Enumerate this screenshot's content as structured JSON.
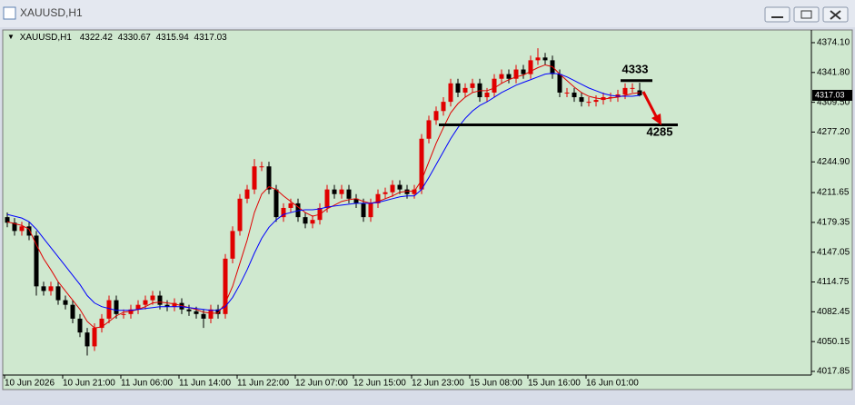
{
  "chart_data": {
    "type": "candlestick",
    "title": "XAUUSD,H1",
    "categories": [
      "10 Jun 2026",
      null,
      null,
      null,
      null,
      null,
      null,
      null,
      "10 Jun 21:00",
      null,
      null,
      null,
      null,
      null,
      null,
      null,
      "11 Jun 06:00",
      null,
      null,
      null,
      null,
      null,
      null,
      null,
      "11 Jun 14:00",
      null,
      null,
      null,
      null,
      null,
      null,
      null,
      "11 Jun 22:00",
      null,
      null,
      null,
      null,
      null,
      null,
      null,
      "12 Jun 07:00",
      null,
      null,
      null,
      null,
      null,
      null,
      null,
      "12 Jun 15:00",
      null,
      null,
      null,
      null,
      null,
      null,
      null,
      "12 Jun 23:00",
      null,
      null,
      null,
      null,
      null,
      null,
      null,
      "15 Jun 08:00",
      null,
      null,
      null,
      null,
      null,
      null,
      null,
      "15 Jun 16:00",
      null,
      null,
      null,
      null,
      null,
      null,
      null,
      "16 Jun 01:00",
      null,
      null,
      null,
      null,
      null,
      null,
      null
    ],
    "open": [
      4185,
      4179,
      4170,
      4175,
      4165,
      4110,
      4105,
      4110,
      4095,
      4090,
      4075,
      4060,
      4045,
      4065,
      4075,
      4095,
      4080,
      4080,
      4085,
      4090,
      4095,
      4100,
      4090,
      4088,
      4092,
      4085,
      4083,
      4080,
      4075,
      4085,
      4080,
      4140,
      4170,
      4205,
      4215,
      4240,
      4240,
      4215,
      4185,
      4195,
      4200,
      4185,
      4178,
      4182,
      4195,
      4215,
      4210,
      4215,
      4205,
      4200,
      4185,
      4200,
      4210,
      4212,
      4220,
      4215,
      4210,
      4215,
      4270,
      4290,
      4300,
      4310,
      4330,
      4320,
      4325,
      4330,
      4315,
      4320,
      4335,
      4340,
      4335,
      4345,
      4340,
      4355,
      4358,
      4355,
      4340,
      4320,
      4320,
      4315,
      4310,
      4310,
      4312,
      4315,
      4315,
      4318,
      4325,
      4322.42
    ],
    "high": [
      4190,
      4184,
      4180,
      4180,
      4170,
      4115,
      4115,
      4115,
      4100,
      4095,
      4080,
      4065,
      4070,
      4080,
      4100,
      4100,
      4085,
      4090,
      4095,
      4100,
      4105,
      4105,
      4095,
      4097,
      4097,
      4090,
      4088,
      4085,
      4090,
      4090,
      4145,
      4175,
      4210,
      4220,
      4248,
      4245,
      4245,
      4220,
      4200,
      4205,
      4205,
      4190,
      4187,
      4200,
      4220,
      4220,
      4220,
      4220,
      4210,
      4205,
      4205,
      4215,
      4217,
      4225,
      4225,
      4220,
      4220,
      4275,
      4295,
      4305,
      4315,
      4335,
      4335,
      4330,
      4335,
      4335,
      4325,
      4340,
      4345,
      4345,
      4350,
      4350,
      4360,
      4368,
      4363,
      4360,
      4345,
      4325,
      4325,
      4320,
      4315,
      4317,
      4320,
      4320,
      4323,
      4330,
      4330,
      4330.67
    ],
    "low": [
      4174,
      4165,
      4165,
      4160,
      4100,
      4100,
      4100,
      4090,
      4085,
      4070,
      4055,
      4035,
      4040,
      4060,
      4070,
      4075,
      4075,
      4075,
      4080,
      4085,
      4090,
      4085,
      4083,
      4083,
      4080,
      4078,
      4075,
      4065,
      4070,
      4075,
      4075,
      4135,
      4165,
      4200,
      4210,
      4235,
      4210,
      4180,
      4180,
      4190,
      4180,
      4173,
      4173,
      4177,
      4190,
      4205,
      4205,
      4200,
      4195,
      4180,
      4180,
      4195,
      4205,
      4207,
      4210,
      4205,
      4205,
      4210,
      4265,
      4285,
      4295,
      4305,
      4315,
      4315,
      4320,
      4310,
      4310,
      4315,
      4330,
      4330,
      4330,
      4335,
      4335,
      4350,
      4350,
      4335,
      4315,
      4315,
      4310,
      4305,
      4305,
      4305,
      4307,
      4310,
      4310,
      4313,
      4320,
      4315.94
    ],
    "close": [
      4179,
      4170,
      4175,
      4165,
      4110,
      4105,
      4110,
      4095,
      4090,
      4075,
      4060,
      4045,
      4065,
      4075,
      4095,
      4080,
      4080,
      4085,
      4090,
      4095,
      4100,
      4090,
      4088,
      4092,
      4085,
      4083,
      4080,
      4075,
      4085,
      4080,
      4140,
      4170,
      4205,
      4215,
      4240,
      4240,
      4215,
      4185,
      4195,
      4200,
      4185,
      4178,
      4182,
      4195,
      4215,
      4210,
      4215,
      4205,
      4200,
      4185,
      4200,
      4210,
      4212,
      4220,
      4215,
      4210,
      4215,
      4270,
      4290,
      4300,
      4310,
      4330,
      4320,
      4325,
      4330,
      4315,
      4320,
      4335,
      4340,
      4335,
      4345,
      4340,
      4355,
      4358,
      4355,
      4340,
      4320,
      4320,
      4315,
      4310,
      4310,
      4312,
      4315,
      4315,
      4318,
      4325,
      4325,
      4317.03
    ],
    "up_color": "#e00000",
    "down_color": "#000000",
    "lines": [
      {
        "color": "#e00000",
        "values": [
          4180,
          4178,
          4176,
          4172,
          4155,
          4140,
          4128,
          4115,
          4105,
          4095,
          4085,
          4072,
          4065,
          4066,
          4072,
          4078,
          4082,
          4083,
          4085,
          4088,
          4092,
          4093,
          4092,
          4091,
          4089,
          4087,
          4085,
          4082,
          4081,
          4081,
          4092,
          4110,
          4135,
          4160,
          4190,
          4210,
          4218,
          4215,
          4208,
          4202,
          4196,
          4190,
          4186,
          4188,
          4194,
          4198,
          4202,
          4204,
          4205,
          4202,
          4200,
          4202,
          4205,
          4208,
          4212,
          4213,
          4213,
          4225,
          4245,
          4265,
          4282,
          4298,
          4308,
          4315,
          4320,
          4322,
          4322,
          4325,
          4330,
          4334,
          4337,
          4339,
          4343,
          4347,
          4350,
          4348,
          4340,
          4333,
          4326,
          4320,
          4316,
          4314,
          4313,
          4314,
          4315,
          4317,
          4319,
          4320
        ]
      },
      {
        "color": "#0000ff",
        "values": [
          4188,
          4186,
          4184,
          4180,
          4172,
          4162,
          4152,
          4142,
          4132,
          4122,
          4112,
          4100,
          4092,
          4088,
          4086,
          4084,
          4084,
          4084,
          4085,
          4086,
          4087,
          4088,
          4088,
          4088,
          4088,
          4087,
          4086,
          4085,
          4084,
          4084,
          4088,
          4098,
          4112,
          4128,
          4146,
          4162,
          4174,
          4182,
          4188,
          4190,
          4192,
          4193,
          4193,
          4194,
          4196,
          4197,
          4198,
          4199,
          4200,
          4200,
          4200,
          4201,
          4203,
          4205,
          4207,
          4208,
          4208,
          4215,
          4228,
          4242,
          4256,
          4270,
          4282,
          4292,
          4300,
          4306,
          4310,
          4315,
          4320,
          4324,
          4328,
          4331,
          4334,
          4337,
          4340,
          4341,
          4340,
          4337,
          4333,
          4329,
          4325,
          4322,
          4319,
          4317,
          4316,
          4316,
          4316,
          4317
        ]
      }
    ],
    "levels": [
      4333,
      4285
    ],
    "ylim": [
      4013.9,
      4384.9
    ],
    "yticks": [
      {
        "value": 4374.1,
        "label": "4374.10"
      },
      {
        "value": 4341.8,
        "label": "4341.80"
      },
      {
        "value": 4309.5,
        "label": "4309.50"
      },
      {
        "value": 4277.2,
        "label": "4277.20"
      },
      {
        "value": 4244.9,
        "label": "4244.90"
      },
      {
        "value": 4211.65,
        "label": "4211.65"
      },
      {
        "value": 4179.35,
        "label": "4179.35"
      },
      {
        "value": 4147.05,
        "label": "4147.05"
      },
      {
        "value": 4114.75,
        "label": "4114.75"
      },
      {
        "value": 4082.45,
        "label": "4082.45"
      },
      {
        "value": 4050.15,
        "label": "4050.15"
      },
      {
        "value": 4017.85,
        "label": "4017.85"
      }
    ],
    "grid": false,
    "background": "#cfe8cf"
  }
}
